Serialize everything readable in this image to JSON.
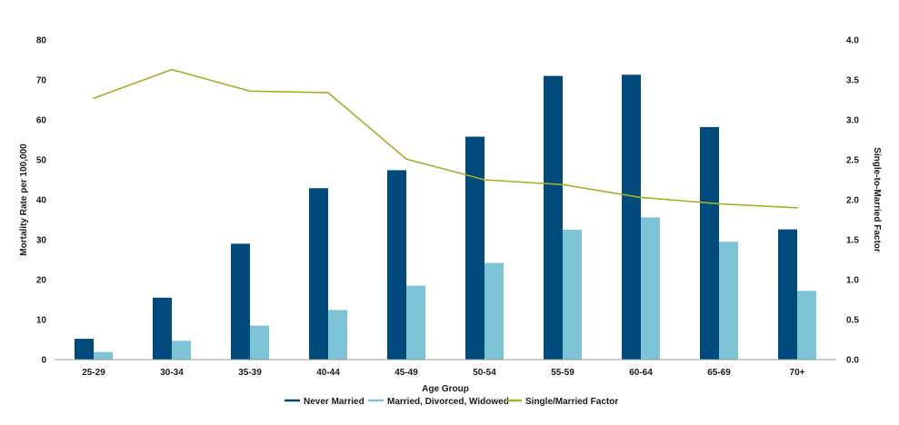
{
  "chart_data": {
    "type": "bar",
    "categories": [
      "25-29",
      "30-34",
      "35-39",
      "40-44",
      "45-49",
      "50-54",
      "55-59",
      "60-64",
      "65-69",
      "70+"
    ],
    "series": [
      {
        "name": "Never Married",
        "type": "bar",
        "axis": "left",
        "color": "#004b7c",
        "values": [
          5.2,
          15.5,
          29.0,
          42.9,
          47.4,
          55.8,
          71.0,
          71.3,
          58.2,
          32.6
        ]
      },
      {
        "name": "Married, Divorced, Widowed",
        "type": "bar",
        "axis": "left",
        "color": "#7cc4d6",
        "values": [
          1.9,
          4.7,
          8.5,
          12.4,
          18.5,
          24.2,
          32.5,
          35.6,
          29.5,
          17.2
        ]
      },
      {
        "name": "Single/Married Factor",
        "type": "line",
        "axis": "right",
        "color": "#a8ad2a",
        "values": [
          3.27,
          3.63,
          3.36,
          3.34,
          2.51,
          2.25,
          2.19,
          2.03,
          1.95,
          1.9
        ]
      }
    ],
    "xlabel": "Age Group",
    "ylabel": "Mortality Rate per 100,000",
    "y2label": "Single-to-Married Factor",
    "ylim": [
      0,
      80
    ],
    "y2lim": [
      0,
      4.0
    ],
    "yticks": [
      "0",
      "10",
      "20",
      "30",
      "40",
      "50",
      "60",
      "70",
      "80"
    ],
    "y2ticks": [
      "0.0",
      "0.5",
      "1.0",
      "1.5",
      "2.0",
      "2.5",
      "3.0",
      "3.5",
      "4.0"
    ],
    "grid": false,
    "legend": "bottom"
  }
}
